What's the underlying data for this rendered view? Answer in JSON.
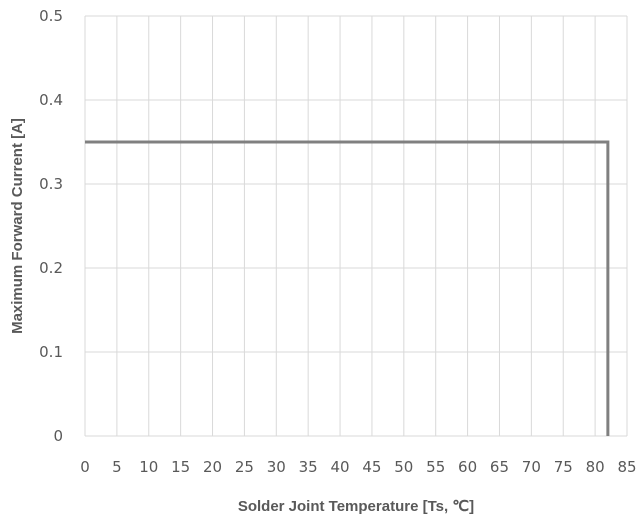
{
  "chart_data": {
    "type": "line",
    "title": "",
    "xlabel": "Solder Joint Temperature [Ts, ℃]",
    "ylabel": "Maximum Forward Current [A]",
    "xlim": [
      0,
      85
    ],
    "ylim": [
      0,
      0.5
    ],
    "x_ticks": [
      "0",
      "5",
      "10",
      "15",
      "20",
      "25",
      "30",
      "35",
      "40",
      "45",
      "50",
      "55",
      "60",
      "65",
      "70",
      "75",
      "80",
      "85"
    ],
    "y_ticks": [
      "0",
      "0.1",
      "0.2",
      "0.3",
      "0.4",
      "0.5"
    ],
    "grid": true,
    "legend": "none",
    "series": [
      {
        "color": "#808080",
        "x": [
          0,
          82,
          82
        ],
        "y": [
          0.35,
          0.35,
          0
        ]
      }
    ]
  }
}
